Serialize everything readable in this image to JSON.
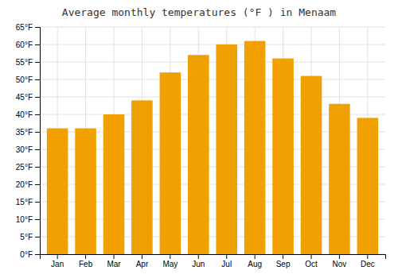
{
  "chart_data": {
    "type": "bar",
    "title": "Average monthly temperatures (°F ) in Menaam",
    "categories": [
      "Jan",
      "Feb",
      "Mar",
      "Apr",
      "May",
      "Jun",
      "Jul",
      "Aug",
      "Sep",
      "Oct",
      "Nov",
      "Dec"
    ],
    "values": [
      36,
      36,
      40,
      44,
      52,
      57,
      60,
      61,
      56,
      51,
      43,
      39
    ],
    "color": "#F0A000",
    "ylim": [
      0,
      65
    ],
    "yticks": [
      {
        "value": 0,
        "label": "0°F"
      },
      {
        "value": 5,
        "label": "5°F"
      },
      {
        "value": 10,
        "label": "10°F"
      },
      {
        "value": 15,
        "label": "15°F"
      },
      {
        "value": 20,
        "label": "20°F"
      },
      {
        "value": 25,
        "label": "25°F"
      },
      {
        "value": 30,
        "label": "30°F"
      },
      {
        "value": 35,
        "label": "35°F"
      },
      {
        "value": 40,
        "label": "40°F"
      },
      {
        "value": 45,
        "label": "45°F"
      },
      {
        "value": 50,
        "label": "50°F"
      },
      {
        "value": 55,
        "label": "55°F"
      },
      {
        "value": 60,
        "label": "60°F"
      },
      {
        "value": 65,
        "label": "65°F"
      }
    ],
    "grid": true
  }
}
